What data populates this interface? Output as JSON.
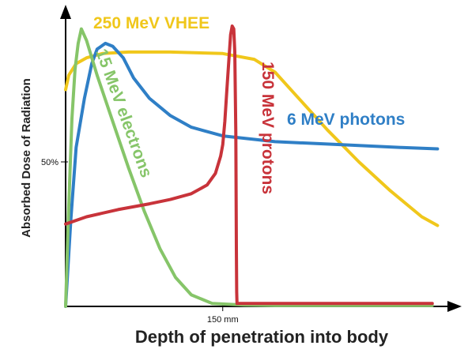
{
  "chart_data": {
    "type": "line",
    "xlabel": "Depth of penetration into body",
    "ylabel": "Absorbed Dose of Radiation",
    "x_ticks": [
      {
        "label": "150 mm",
        "value": 150
      }
    ],
    "y_ticks": [
      {
        "label": "50%",
        "value": 50
      }
    ],
    "xlim": [
      0,
      360
    ],
    "ylim": [
      0,
      100
    ],
    "grid": false,
    "legend": "none",
    "series": [
      {
        "name": "250 MeV VHEE",
        "color": "#f0c71b",
        "x": [
          0,
          3,
          10,
          20,
          35,
          60,
          100,
          150,
          180,
          200,
          220,
          250,
          280,
          310,
          340,
          355
        ],
        "y": [
          75,
          80,
          84,
          86,
          87.5,
          88,
          88,
          87.5,
          85.5,
          81,
          73,
          61,
          50,
          40,
          31,
          28
        ]
      },
      {
        "name": "6 MeV photons",
        "color": "#2f7fc6",
        "x": [
          0,
          5,
          10,
          18,
          25,
          30,
          38,
          45,
          55,
          65,
          80,
          100,
          120,
          150,
          200,
          260,
          320,
          355
        ],
        "y": [
          0,
          30,
          55,
          72,
          84,
          89,
          91,
          90,
          86,
          79,
          72,
          66,
          62,
          59,
          57,
          56,
          55,
          54.5
        ]
      },
      {
        "name": "15 MeV electrons",
        "color": "#86c569",
        "x": [
          0,
          3,
          6,
          9,
          12,
          15,
          20,
          30,
          45,
          60,
          75,
          90,
          105,
          120,
          140,
          170,
          200,
          250,
          300,
          350
        ],
        "y": [
          0,
          35,
          65,
          82,
          91,
          96,
          92,
          80,
          64,
          48,
          33,
          20,
          10,
          4,
          1,
          0.5,
          0.3,
          0.3,
          0.3,
          0.3
        ]
      },
      {
        "name": "150 MeV protons",
        "color": "#c8333a",
        "x": [
          0,
          20,
          50,
          80,
          100,
          120,
          135,
          143,
          148,
          150,
          152,
          154,
          156,
          157.5,
          159,
          160.5,
          161.5,
          162.5,
          163,
          163.3,
          163.6,
          250,
          350
        ],
        "y": [
          28.5,
          31,
          33.5,
          35.5,
          37,
          39,
          42,
          46,
          52,
          56,
          64,
          75,
          86,
          94,
          97,
          96,
          88,
          60,
          20,
          5,
          1,
          1,
          1
        ]
      }
    ]
  }
}
